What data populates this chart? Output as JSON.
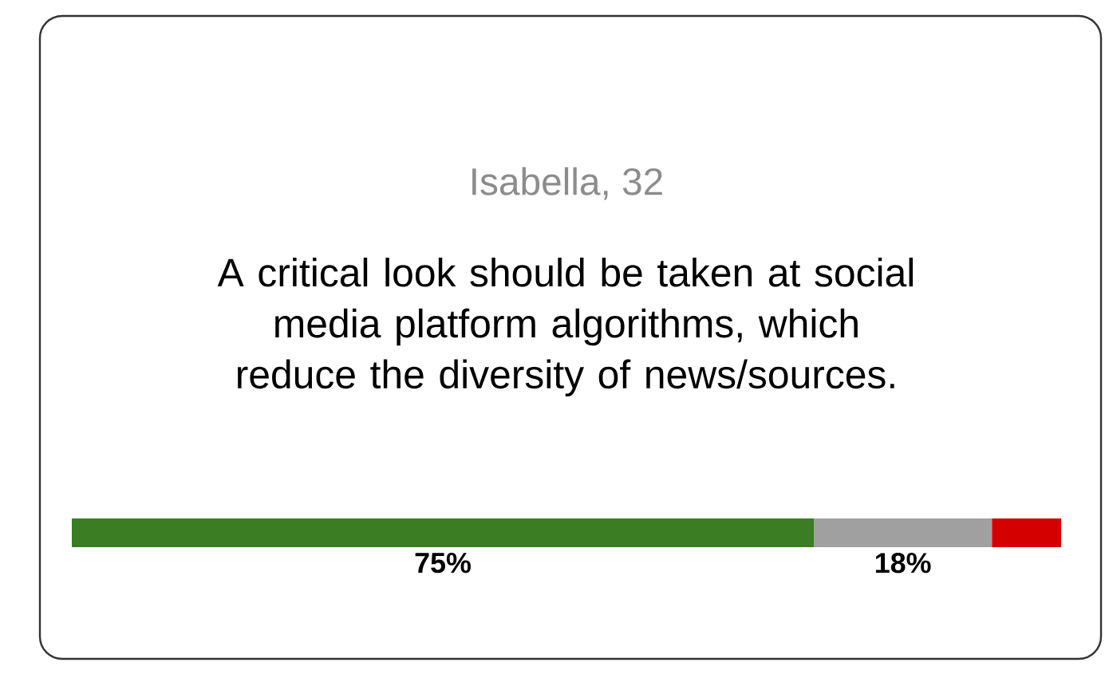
{
  "chart_data": {
    "type": "bar",
    "orientation": "horizontal",
    "stacked": true,
    "title": "Isabella, 32",
    "subtitle": "A critical look should be taken at social media platform algorithms, which reduce the diversity of news/sources.",
    "categories": [
      null
    ],
    "xlim": [
      0,
      100
    ],
    "tick_labels": false,
    "series": [
      {
        "color": "#3a7d22",
        "values": [
          75
        ],
        "value_labels": [
          "75%"
        ]
      },
      {
        "color": "#a0a0a0",
        "values": [
          18
        ],
        "value_labels": [
          "18%"
        ]
      },
      {
        "color": "#d40000",
        "values": [
          7
        ],
        "value_labels": [
          null
        ]
      }
    ]
  }
}
